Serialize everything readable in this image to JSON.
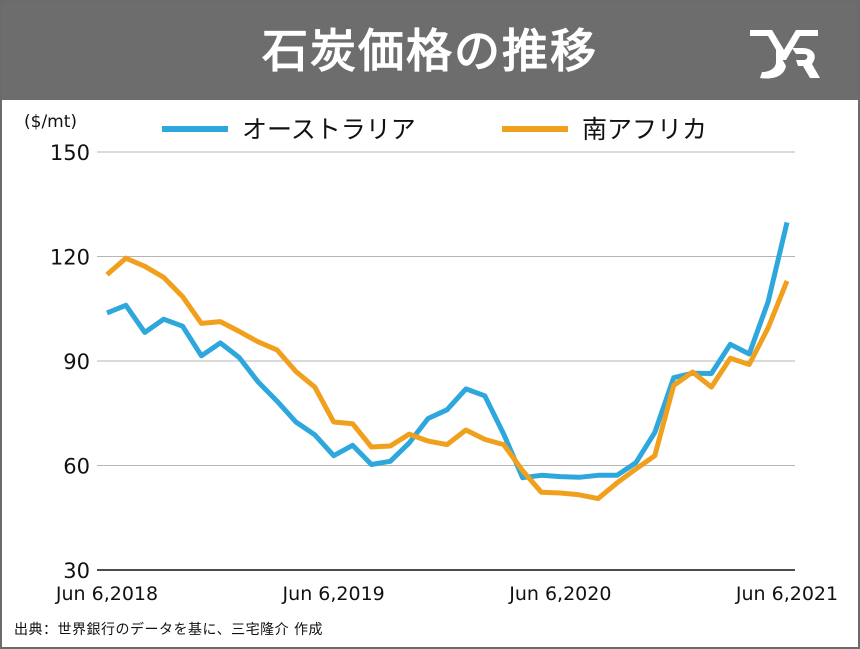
{
  "header": {
    "title": "石炭価格の推移"
  },
  "source_note": "出典：世界銀行のデータを基に、三宅隆介 作成",
  "colors": {
    "header_bg": "#6d6d6d",
    "australia": "#2ea8dc",
    "south_africa": "#f0a01c",
    "grid": "#b5b5b5"
  },
  "chart_data": {
    "type": "line",
    "unit_label": "($/mt)",
    "ylim": [
      30,
      150
    ],
    "y_ticks": [
      150,
      120,
      90,
      60,
      30
    ],
    "x_ticks": [
      "Jun 6,2018",
      "Jun 6,2019",
      "Jun 6,2020",
      "Jun 6,2021"
    ],
    "x_tick_positions": [
      0,
      12,
      24,
      36
    ],
    "grid": true,
    "legend_position": "top",
    "series": [
      {
        "name": "オーストラリア",
        "color": "#2ea8dc",
        "values": [
          103.8,
          106,
          98.2,
          102,
          100,
          91.5,
          95.2,
          91,
          84,
          78.5,
          72.5,
          68.8,
          62.8,
          65.8,
          60.3,
          61.2,
          66.5,
          73.5,
          76,
          82,
          80,
          69,
          56.5,
          57.2,
          56.8,
          56.6,
          57.2,
          57.2,
          60.8,
          69.5,
          85.2,
          86.5,
          86.4,
          94.8,
          92,
          107,
          129.8
        ]
      },
      {
        "name": "南アフリカ",
        "color": "#f0a01c",
        "values": [
          114.8,
          119.5,
          117.2,
          114,
          108.5,
          100.8,
          101.3,
          98.5,
          95.5,
          93.2,
          87,
          82.5,
          72.5,
          72,
          65.3,
          65.6,
          69,
          67,
          66,
          70.2,
          67.5,
          66,
          58.5,
          52.3,
          52.1,
          51.6,
          50.5,
          55,
          59,
          62.8,
          83,
          86.8,
          82.5,
          90.8,
          89,
          99.5,
          113
        ]
      }
    ]
  }
}
